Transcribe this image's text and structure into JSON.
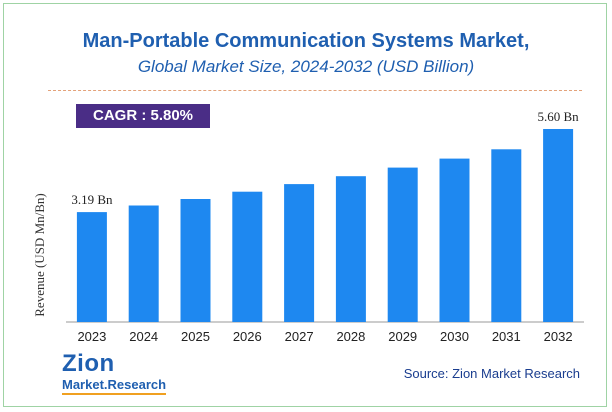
{
  "chart_data": {
    "type": "bar",
    "title": "Man-Portable Communication Systems Market,",
    "subtitle": "Global Market Size, 2024-2032 (USD Billion)",
    "categories": [
      "2023",
      "2024",
      "2025",
      "2026",
      "2027",
      "2028",
      "2029",
      "2030",
      "2031",
      "2032"
    ],
    "values": [
      3.19,
      3.38,
      3.57,
      3.78,
      4.0,
      4.23,
      4.48,
      4.74,
      5.01,
      5.6
    ],
    "ylabel": "Revenue (USD Mn/Bn)",
    "xlabel": "",
    "ylim": [
      0,
      5.6
    ],
    "data_labels": [
      {
        "category": "2023",
        "text": "3.19 Bn"
      },
      {
        "category": "2032",
        "text": "5.60 Bn"
      }
    ],
    "bar_color": "#1e88f0"
  },
  "cagr": "CAGR : 5.80%",
  "source": "Source: Zion Market Research",
  "logo": {
    "top": "Zion",
    "bottom": "Market.Research",
    "color": "#1f5fb0",
    "accent": "#f0a020"
  },
  "colors": {
    "title": "#1f5fb0",
    "cagr_bg": "#4a2d86"
  }
}
